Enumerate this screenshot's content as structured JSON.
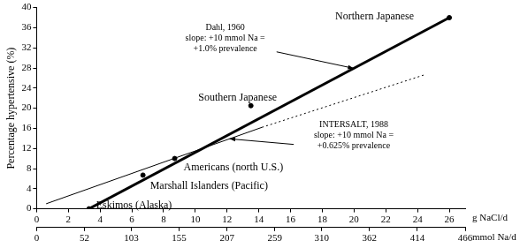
{
  "chart_data": {
    "type": "scatter",
    "y_label": "Percentage hypertensive (%)",
    "x_label": "g NaCl/d",
    "x2_label": "mmol Na/d",
    "xlim": [
      0,
      27
    ],
    "xticks": [
      0,
      2,
      4,
      6,
      8,
      10,
      12,
      14,
      16,
      18,
      20,
      22,
      24,
      26
    ],
    "x2lim": [
      0,
      466
    ],
    "x2ticks": [
      0,
      52,
      103,
      155,
      207,
      259,
      310,
      362,
      414,
      466
    ],
    "ylim": [
      0,
      40
    ],
    "yticks": [
      0,
      4,
      8,
      12,
      16,
      20,
      24,
      28,
      32,
      36,
      40
    ],
    "grid": false,
    "points": {
      "color": "#000000",
      "marker": "circle",
      "labels": [
        "Eskimos (Alaska)",
        "Marshall Islanders (Pacific)",
        "Americans (north U.S.)",
        "Southern Japanese",
        "Northern Japanese"
      ],
      "x": [
        3.3,
        6.7,
        8.7,
        13.5,
        26
      ],
      "values": [
        0,
        6.7,
        10,
        20.5,
        38
      ]
    },
    "lines": [
      {
        "x": [
          3.3,
          26
        ],
        "values": [
          0,
          38
        ],
        "color": "#000000",
        "line_style": "solid"
      },
      {
        "x": [
          0.6,
          14.2
        ],
        "values": [
          1,
          16.2
        ],
        "color": "#000000",
        "line_style": "solid"
      },
      {
        "x": [
          14.2,
          24.5
        ],
        "values": [
          16.2,
          26.7
        ],
        "color": "#000000",
        "line_style": "dotted"
      }
    ],
    "annotations": [
      {
        "text": [
          "Dahl, 1960",
          "slope: +10 mmol Na =",
          "+1.0% prevalence"
        ]
      },
      {
        "text": [
          "INTERSALT, 1988",
          "slope: +10 mmol Na =",
          "+0.625% prevalence"
        ]
      }
    ]
  }
}
